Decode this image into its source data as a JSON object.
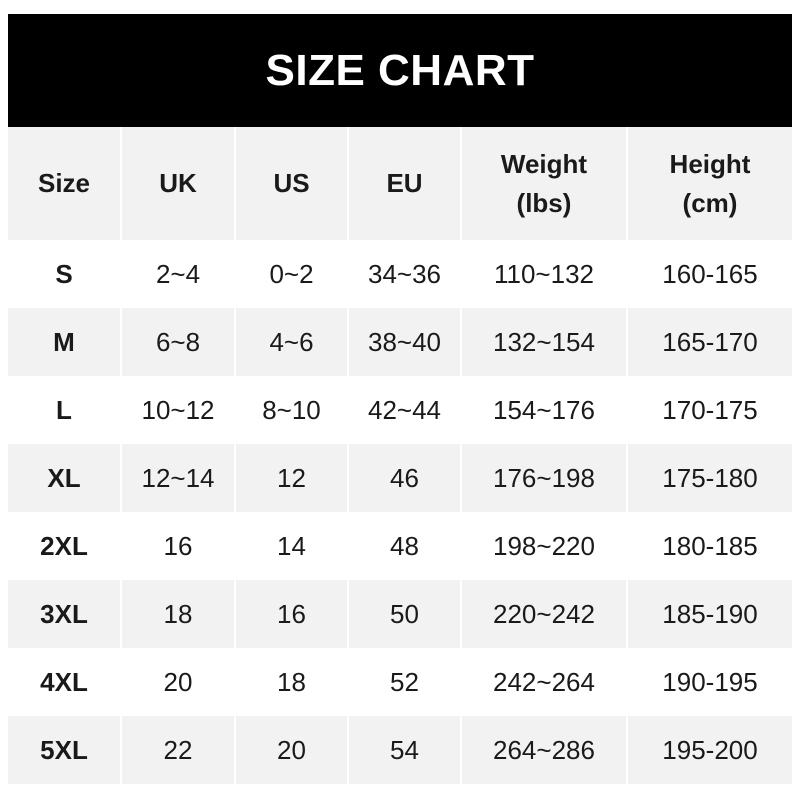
{
  "title": "SIZE CHART",
  "columns": [
    "Size",
    "UK",
    "US",
    "EU",
    "Weight\n(lbs)",
    "Height\n(cm)"
  ],
  "rows": [
    [
      "S",
      "2~4",
      "0~2",
      "34~36",
      "110~132",
      "160-165"
    ],
    [
      "M",
      "6~8",
      "4~6",
      "38~40",
      "132~154",
      "165-170"
    ],
    [
      "L",
      "10~12",
      "8~10",
      "42~44",
      "154~176",
      "170-175"
    ],
    [
      "XL",
      "12~14",
      "12",
      "46",
      "176~198",
      "175-180"
    ],
    [
      "2XL",
      "16",
      "14",
      "48",
      "198~220",
      "180-185"
    ],
    [
      "3XL",
      "18",
      "16",
      "50",
      "220~242",
      "185-190"
    ],
    [
      "4XL",
      "20",
      "18",
      "52",
      "242~264",
      "190-195"
    ],
    [
      "5XL",
      "22",
      "20",
      "54",
      "264~286",
      "195-200"
    ]
  ],
  "colors": {
    "banner": "#000000",
    "stripe": "#f2f2f2",
    "text": "#1a1a1a"
  }
}
